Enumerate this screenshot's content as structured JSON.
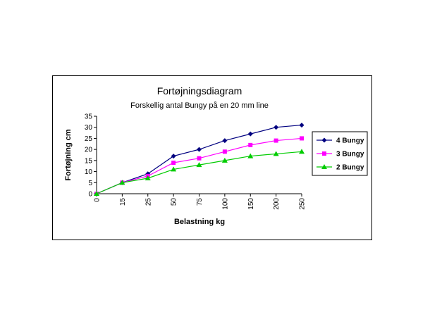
{
  "chart_data": {
    "type": "line",
    "title": "Fortøjningsdiagram",
    "subtitle": "Forskellig antal Bungy på en 20 mm line",
    "xlabel": "Belastning kg",
    "ylabel": "Fortøjning cm",
    "ylim": [
      0,
      35
    ],
    "yticks": [
      0,
      5,
      10,
      15,
      20,
      25,
      30,
      35
    ],
    "categories": [
      "0",
      "15",
      "25",
      "50",
      "75",
      "100",
      "150",
      "200",
      "250"
    ],
    "grid": false,
    "legend_position": "right",
    "series": [
      {
        "name": "4 Bungy",
        "color": "#000080",
        "marker": "diamond",
        "values": [
          0,
          5,
          9,
          17,
          20,
          24,
          27,
          30,
          31
        ]
      },
      {
        "name": "3 Bungy",
        "color": "#ff00ff",
        "marker": "square",
        "values": [
          0,
          5,
          8,
          14,
          16,
          19,
          22,
          24,
          25
        ]
      },
      {
        "name": "2 Bungy",
        "color": "#00cc00",
        "marker": "triangle",
        "values": [
          0,
          5,
          7,
          11,
          13,
          15,
          17,
          18,
          19
        ]
      }
    ]
  }
}
